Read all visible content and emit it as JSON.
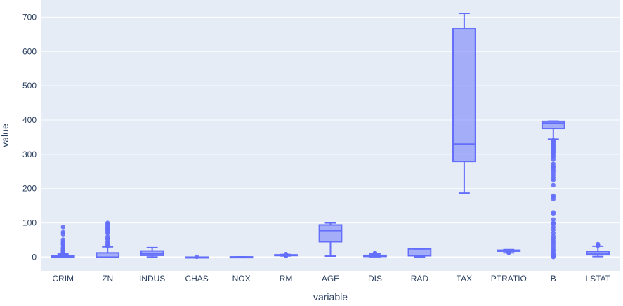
{
  "chart_data": {
    "type": "box",
    "xlabel": "variable",
    "ylabel": "value",
    "ylim": [
      -40,
      750
    ],
    "yticks": [
      0,
      100,
      200,
      300,
      400,
      500,
      600,
      700
    ],
    "grid": true,
    "legend": "none",
    "colors": {
      "fill": "#636efa",
      "background": "#e5ecf6",
      "grid": "#ffffff",
      "text": "#2a3f5f"
    },
    "boxes": [
      {
        "category": "CRIM",
        "min": 0.006,
        "q1": 0.08,
        "median": 0.26,
        "q3": 3.68,
        "whisker_high": 9.0,
        "max": 89,
        "outliers": [
          9.5,
          10.0,
          10.5,
          11.0,
          11.5,
          12.0,
          12.5,
          13.0,
          13.5,
          14.0,
          14.5,
          15.0,
          15.5,
          16.0,
          17.0,
          18.0,
          19.0,
          20.0,
          22.0,
          24.0,
          25.0,
          28.0,
          37.0,
          38.0,
          41.0,
          45.0,
          51.0,
          67.0,
          73.0,
          88.0
        ]
      },
      {
        "category": "ZN",
        "min": 0,
        "q1": 0,
        "median": 0,
        "q3": 12.5,
        "whisker_high": 30,
        "max": 100,
        "outliers": [
          33,
          34,
          35,
          40,
          45,
          52.5,
          55,
          60,
          70,
          75,
          80,
          82.5,
          85,
          90,
          95,
          100
        ]
      },
      {
        "category": "INDUS",
        "min": 0.46,
        "q1": 5.19,
        "median": 9.69,
        "q3": 18.1,
        "whisker_high": 27.74,
        "max": 27.74,
        "outliers": []
      },
      {
        "category": "CHAS",
        "min": 0,
        "q1": 0,
        "median": 0,
        "q3": 0,
        "whisker_high": 0,
        "max": 1,
        "outliers": [
          1
        ]
      },
      {
        "category": "NOX",
        "min": 0.385,
        "q1": 0.449,
        "median": 0.538,
        "q3": 0.624,
        "whisker_high": 0.871,
        "max": 0.871,
        "outliers": []
      },
      {
        "category": "RM",
        "min": 3.56,
        "q1": 5.89,
        "median": 6.21,
        "q3": 6.62,
        "whisker_high": 7.69,
        "max": 8.78,
        "outliers": [
          3.56,
          3.86,
          4.14,
          4.37,
          4.52,
          7.8,
          8.0,
          8.3,
          8.78
        ]
      },
      {
        "category": "AGE",
        "min": 2.9,
        "q1": 45.0,
        "median": 77.5,
        "q3": 94.07,
        "whisker_high": 100,
        "max": 100,
        "outliers": []
      },
      {
        "category": "DIS",
        "min": 1.13,
        "q1": 2.1,
        "median": 3.21,
        "q3": 5.19,
        "whisker_high": 9.22,
        "max": 12.13,
        "outliers": [
          9.5,
          10.0,
          10.5,
          10.7,
          12.1
        ]
      },
      {
        "category": "RAD",
        "min": 1,
        "q1": 4,
        "median": 5,
        "q3": 24,
        "whisker_high": 24,
        "max": 24,
        "outliers": []
      },
      {
        "category": "TAX",
        "min": 187,
        "q1": 279,
        "median": 330,
        "q3": 666,
        "whisker_high": 711,
        "max": 711,
        "outliers": []
      },
      {
        "category": "PTRATIO",
        "min": 12.6,
        "q1": 17.4,
        "median": 19.05,
        "q3": 20.2,
        "whisker_high": 22.0,
        "max": 22.0,
        "outliers": [
          12.6,
          13.0
        ]
      },
      {
        "category": "B",
        "min": 0.32,
        "q1": 375.38,
        "median": 391.44,
        "q3": 396.23,
        "whisker_high": 396.9,
        "max": 396.9,
        "whisker_low": 344,
        "outliers": [
          0.32,
          2.5,
          3.5,
          7.7,
          10.5,
          16.5,
          22,
          28,
          35,
          42,
          48,
          55,
          61,
          70,
          80,
          88,
          97,
          100,
          110,
          126,
          131,
          169,
          175,
          179,
          210,
          225,
          232,
          240,
          248,
          255,
          261,
          265,
          272,
          285,
          292,
          297,
          302,
          306,
          310,
          315,
          318,
          322,
          326,
          330,
          334,
          338,
          341
        ]
      },
      {
        "category": "LSTAT",
        "min": 1.73,
        "q1": 6.95,
        "median": 11.36,
        "q3": 16.96,
        "whisker_high": 31.99,
        "max": 37.97,
        "outliers": [
          33.5,
          34.4,
          34.8,
          36.0,
          37.97
        ]
      }
    ]
  }
}
